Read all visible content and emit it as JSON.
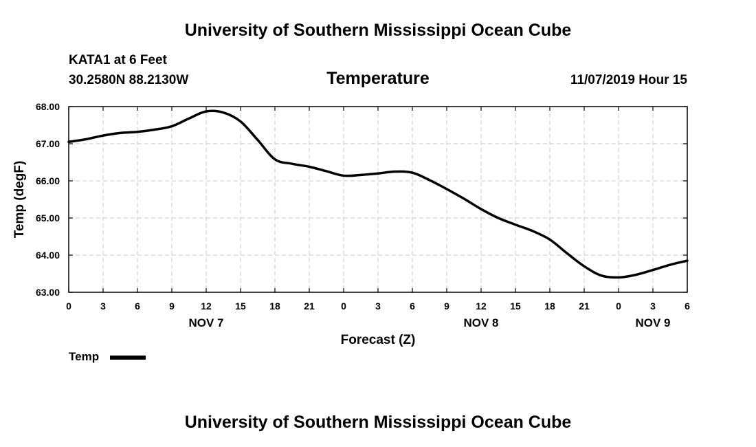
{
  "header": {
    "title": "University of Southern Mississippi Ocean Cube",
    "station": "KATA1 at 6 Feet",
    "coords": "30.2580N 88.2130W",
    "datetime": "11/07/2019 Hour 15"
  },
  "footer": {
    "title": "University of Southern Mississippi Ocean Cube"
  },
  "chart_data": {
    "type": "line",
    "title": "Temperature",
    "xlabel": "Forecast (Z)",
    "ylabel": "Temp (degF)",
    "ylim": [
      63.0,
      68.0
    ],
    "xlim": [
      0,
      54
    ],
    "grid": true,
    "y_ticks": [
      "63.00",
      "64.00",
      "65.00",
      "66.00",
      "67.00",
      "68.00"
    ],
    "x_ticks": [
      "0",
      "3",
      "6",
      "9",
      "12",
      "15",
      "18",
      "21",
      "0",
      "3",
      "6",
      "9",
      "12",
      "15",
      "18",
      "21",
      "0",
      "3",
      "6"
    ],
    "date_labels": [
      {
        "text": "NOV 7",
        "hour": 12
      },
      {
        "text": "NOV 8",
        "hour": 36
      },
      {
        "text": "NOV 9",
        "hour": 51
      }
    ],
    "series": [
      {
        "name": "Temp",
        "color": "#000000",
        "x": [
          0,
          1.5,
          3,
          4.5,
          6,
          7.5,
          9,
          10.5,
          12,
          13.5,
          15,
          16.5,
          18,
          19.5,
          21,
          22.5,
          24,
          25.5,
          27,
          28.5,
          30,
          31.5,
          33,
          34.5,
          36,
          37.5,
          39,
          40.5,
          42,
          43.5,
          45,
          46.5,
          48,
          49.5,
          51,
          52.5,
          54
        ],
        "values": [
          67.05,
          67.12,
          67.22,
          67.29,
          67.32,
          67.38,
          67.47,
          67.68,
          67.87,
          67.84,
          67.6,
          67.1,
          66.58,
          66.46,
          66.38,
          66.26,
          66.14,
          66.16,
          66.2,
          66.25,
          66.22,
          66.02,
          65.78,
          65.52,
          65.24,
          65.0,
          64.82,
          64.65,
          64.42,
          64.05,
          63.7,
          63.45,
          63.4,
          63.47,
          63.6,
          63.74,
          63.85
        ]
      }
    ],
    "legend": {
      "label": "Temp",
      "position": "bottom-left"
    }
  }
}
